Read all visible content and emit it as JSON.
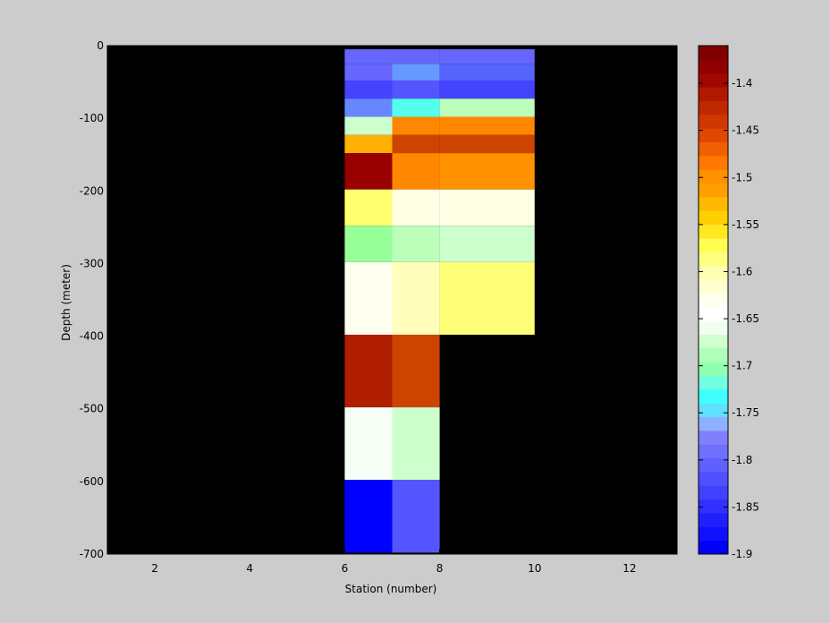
{
  "chart_data": {
    "type": "heatmap",
    "xlabel": "Station (number)",
    "ylabel": "Depth (meter)",
    "xlim": [
      1,
      13
    ],
    "ylim": [
      -700,
      0
    ],
    "x_ticks": [
      2,
      4,
      6,
      8,
      10,
      12
    ],
    "y_ticks": [
      0,
      -100,
      -200,
      -300,
      -400,
      -500,
      -600,
      -700
    ],
    "background_color": "#000000",
    "figure_background": "#cccccc",
    "colormap": "jet-like diverging (blue - cyan - white - yellow - orange - dark red)",
    "colorbar": {
      "min": -1.9,
      "max": -1.36,
      "ticks": [
        -1.4,
        -1.45,
        -1.5,
        -1.55,
        -1.6,
        -1.65,
        -1.7,
        -1.75,
        -1.8,
        -1.85,
        -1.9
      ],
      "tick_labels": [
        "-1.4",
        "-1.45",
        "-1.5",
        "-1.55",
        "-1.6",
        "-1.65",
        "-1.7",
        "-1.75",
        "-1.8",
        "-1.85",
        "-1.9"
      ],
      "reversed": true,
      "colors": [
        "#0000ff",
        "#1010ff",
        "#2020ff",
        "#3030ff",
        "#4040ff",
        "#5050ff",
        "#6060ff",
        "#7070ff",
        "#8080ff",
        "#8fb0ff",
        "#60e0ff",
        "#40ffff",
        "#70ffe0",
        "#90ffb0",
        "#b0ffb8",
        "#d0ffd0",
        "#f0fff0",
        "#ffffff",
        "#fffff0",
        "#ffffd0",
        "#ffffb0",
        "#ffff80",
        "#ffff50",
        "#ffe820",
        "#ffd000",
        "#ffb800",
        "#ffa000",
        "#ff9000",
        "#ff7800",
        "#f06000",
        "#e04800",
        "#d03800",
        "#c02800",
        "#b01800",
        "#a00800",
        "#900000",
        "#800000"
      ]
    },
    "cells": [
      {
        "x0": 6,
        "x1": 7,
        "y0": -5,
        "y1": -25,
        "value": -1.82,
        "color": "#6666ff"
      },
      {
        "x0": 6,
        "x1": 7,
        "y0": -25,
        "y1": -48,
        "value": -1.83,
        "color": "#6666ff"
      },
      {
        "x0": 6,
        "x1": 7,
        "y0": -48,
        "y1": -73,
        "value": -1.85,
        "color": "#4444ff"
      },
      {
        "x0": 6,
        "x1": 7,
        "y0": -73,
        "y1": -98,
        "value": -1.81,
        "color": "#6688ff"
      },
      {
        "x0": 6,
        "x1": 7,
        "y0": -98,
        "y1": -123,
        "value": -1.68,
        "color": "#ccffcc"
      },
      {
        "x0": 6,
        "x1": 7,
        "y0": -123,
        "y1": -148,
        "value": -1.47,
        "color": "#ffb000"
      },
      {
        "x0": 6,
        "x1": 7,
        "y0": -148,
        "y1": -198,
        "value": -1.37,
        "color": "#990000"
      },
      {
        "x0": 6,
        "x1": 7,
        "y0": -198,
        "y1": -248,
        "value": -1.56,
        "color": "#ffff70"
      },
      {
        "x0": 6,
        "x1": 7,
        "y0": -248,
        "y1": -298,
        "value": -1.7,
        "color": "#99ff99"
      },
      {
        "x0": 6,
        "x1": 7,
        "y0": -298,
        "y1": -398,
        "value": -1.62,
        "color": "#fffff0"
      },
      {
        "x0": 6,
        "x1": 7,
        "y0": -398,
        "y1": -498,
        "value": -1.39,
        "color": "#b01e00"
      },
      {
        "x0": 6,
        "x1": 7,
        "y0": -498,
        "y1": -598,
        "value": -1.64,
        "color": "#f5fff5"
      },
      {
        "x0": 6,
        "x1": 7,
        "y0": -598,
        "y1": -698,
        "value": -1.9,
        "color": "#0000ff"
      },
      {
        "x0": 7,
        "x1": 8,
        "y0": -5,
        "y1": -25,
        "value": -1.82,
        "color": "#6666ff"
      },
      {
        "x0": 7,
        "x1": 8,
        "y0": -25,
        "y1": -48,
        "value": -1.8,
        "color": "#6699ff"
      },
      {
        "x0": 7,
        "x1": 8,
        "y0": -48,
        "y1": -73,
        "value": -1.83,
        "color": "#5555ff"
      },
      {
        "x0": 7,
        "x1": 8,
        "y0": -73,
        "y1": -98,
        "value": -1.75,
        "color": "#55ffee"
      },
      {
        "x0": 7,
        "x1": 8,
        "y0": -98,
        "y1": -123,
        "value": -1.45,
        "color": "#ff8800"
      },
      {
        "x0": 7,
        "x1": 8,
        "y0": -123,
        "y1": -148,
        "value": -1.41,
        "color": "#cc4400"
      },
      {
        "x0": 7,
        "x1": 8,
        "y0": -148,
        "y1": -198,
        "value": -1.44,
        "color": "#ff8800"
      },
      {
        "x0": 7,
        "x1": 8,
        "y0": -198,
        "y1": -248,
        "value": -1.61,
        "color": "#ffffe6"
      },
      {
        "x0": 7,
        "x1": 8,
        "y0": -248,
        "y1": -298,
        "value": -1.68,
        "color": "#bbffbb"
      },
      {
        "x0": 7,
        "x1": 8,
        "y0": -298,
        "y1": -398,
        "value": -1.59,
        "color": "#ffffbb"
      },
      {
        "x0": 7,
        "x1": 8,
        "y0": -398,
        "y1": -498,
        "value": -1.41,
        "color": "#cc4400"
      },
      {
        "x0": 7,
        "x1": 8,
        "y0": -498,
        "y1": -598,
        "value": -1.67,
        "color": "#ccffcc"
      },
      {
        "x0": 7,
        "x1": 8,
        "y0": -598,
        "y1": -698,
        "value": -1.84,
        "color": "#5555ff"
      },
      {
        "x0": 8,
        "x1": 10,
        "y0": -5,
        "y1": -25,
        "value": -1.83,
        "color": "#6666ff"
      },
      {
        "x0": 8,
        "x1": 10,
        "y0": -25,
        "y1": -48,
        "value": -1.83,
        "color": "#5566ff"
      },
      {
        "x0": 8,
        "x1": 10,
        "y0": -48,
        "y1": -73,
        "value": -1.85,
        "color": "#4444ff"
      },
      {
        "x0": 8,
        "x1": 10,
        "y0": -73,
        "y1": -98,
        "value": -1.68,
        "color": "#bbffbb"
      },
      {
        "x0": 8,
        "x1": 10,
        "y0": -98,
        "y1": -123,
        "value": -1.45,
        "color": "#ff8800"
      },
      {
        "x0": 8,
        "x1": 10,
        "y0": -123,
        "y1": -148,
        "value": -1.41,
        "color": "#cc4400"
      },
      {
        "x0": 8,
        "x1": 10,
        "y0": -148,
        "y1": -198,
        "value": -1.45,
        "color": "#ff9000"
      },
      {
        "x0": 8,
        "x1": 10,
        "y0": -198,
        "y1": -248,
        "value": -1.61,
        "color": "#ffffe6"
      },
      {
        "x0": 8,
        "x1": 10,
        "y0": -248,
        "y1": -298,
        "value": -1.67,
        "color": "#ccffcc"
      },
      {
        "x0": 8,
        "x1": 10,
        "y0": -298,
        "y1": -398,
        "value": -1.57,
        "color": "#ffff77"
      }
    ]
  }
}
